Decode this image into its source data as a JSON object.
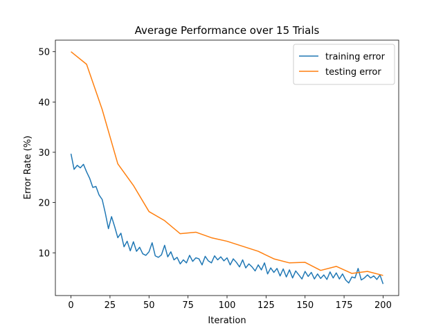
{
  "chart_data": {
    "type": "line",
    "title": "Average Performance over 15 Trials",
    "xlabel": "Iteration",
    "ylabel": "Error Rate (%)",
    "xlim": [
      -10,
      210
    ],
    "xticks": [
      0,
      25,
      50,
      75,
      100,
      125,
      150,
      175,
      200
    ],
    "ylim": [
      1.5,
      52.3
    ],
    "yticks": [
      10,
      20,
      30,
      40,
      50
    ],
    "legend": "upper right",
    "series": [
      {
        "name": "training error",
        "color": "#1f77b4",
        "x": [
          0,
          2,
          4,
          6,
          8,
          10,
          12,
          14,
          16,
          18,
          20,
          22,
          24,
          26,
          28,
          30,
          32,
          34,
          36,
          38,
          40,
          42,
          44,
          46,
          48,
          50,
          52,
          54,
          56,
          58,
          60,
          62,
          64,
          66,
          68,
          70,
          72,
          74,
          76,
          78,
          80,
          82,
          84,
          86,
          88,
          90,
          92,
          94,
          96,
          98,
          100,
          102,
          104,
          106,
          108,
          110,
          112,
          114,
          116,
          118,
          120,
          122,
          124,
          126,
          128,
          130,
          132,
          134,
          136,
          138,
          140,
          142,
          144,
          146,
          148,
          150,
          152,
          154,
          156,
          158,
          160,
          162,
          164,
          166,
          168,
          170,
          172,
          174,
          176,
          178,
          180,
          182,
          184,
          186,
          188,
          190,
          192,
          194,
          196,
          198,
          200
        ],
        "values": [
          29.7,
          26.6,
          27.4,
          26.9,
          27.6,
          26.1,
          24.8,
          23.0,
          23.2,
          21.5,
          20.6,
          17.9,
          14.8,
          17.2,
          15.2,
          13.0,
          13.9,
          11.2,
          12.3,
          10.4,
          12.2,
          10.3,
          11.1,
          9.8,
          9.5,
          10.2,
          12.0,
          9.4,
          9.1,
          9.6,
          11.5,
          9.2,
          10.2,
          8.6,
          9.1,
          7.8,
          8.6,
          8.0,
          9.5,
          8.3,
          9.0,
          8.8,
          7.6,
          9.3,
          8.4,
          8.0,
          9.4,
          8.6,
          9.2,
          8.4,
          9.0,
          7.6,
          8.8,
          8.1,
          7.2,
          8.6,
          7.0,
          7.8,
          7.2,
          6.4,
          7.6,
          6.6,
          8.0,
          5.8,
          7.0,
          6.1,
          6.9,
          5.4,
          6.8,
          5.2,
          6.6,
          5.0,
          6.4,
          5.6,
          4.8,
          6.3,
          5.3,
          6.1,
          4.8,
          5.8,
          4.9,
          5.6,
          4.7,
          6.2,
          5.0,
          6.0,
          4.8,
          5.8,
          4.6,
          4.0,
          5.2,
          5.0,
          6.9,
          4.6,
          5.0,
          5.6,
          5.0,
          5.4,
          4.7,
          5.6,
          3.8
        ]
      },
      {
        "name": "testing error",
        "color": "#ff7f0e",
        "x": [
          0,
          10,
          20,
          30,
          40,
          50,
          60,
          70,
          80,
          90,
          100,
          110,
          120,
          130,
          140,
          150,
          160,
          170,
          180,
          190,
          200
        ],
        "values": [
          50,
          47.5,
          38.5,
          27.7,
          23.4,
          18.2,
          16.4,
          13.8,
          14.1,
          13.0,
          12.3,
          11.3,
          10.3,
          8.8,
          8.0,
          8.1,
          6.5,
          7.3,
          5.9,
          6.3,
          5.5
        ]
      }
    ]
  }
}
